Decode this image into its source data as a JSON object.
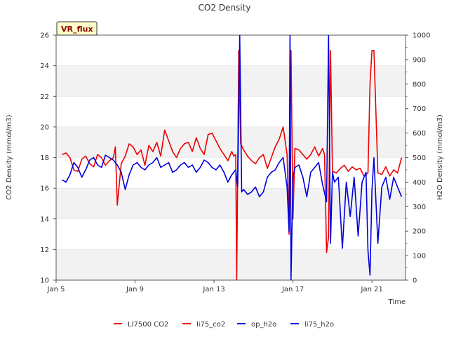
{
  "chart_data": {
    "type": "line",
    "title": "CO2 Density",
    "badge": "VR_flux",
    "xlabel": "Time",
    "ylabel_left": "CO2 Density (mmol/m3)",
    "ylabel_right": "H2O Density (mmol/m3)",
    "xlim": [
      5,
      22.7
    ],
    "ylim_left": [
      10,
      26
    ],
    "ylim_right": [
      0,
      1000
    ],
    "x_ticks": [
      {
        "value": 5,
        "label": "Jan 5"
      },
      {
        "value": 9,
        "label": "Jan 9"
      },
      {
        "value": 13,
        "label": "Jan 13"
      },
      {
        "value": 17,
        "label": "Jan 17"
      },
      {
        "value": 21,
        "label": "Jan 21"
      }
    ],
    "y_ticks_left": [
      "10",
      "12",
      "14",
      "16",
      "18",
      "20",
      "22",
      "24",
      "26"
    ],
    "y_ticks_right": [
      "0",
      "100",
      "200",
      "300",
      "400",
      "500",
      "600",
      "700",
      "800",
      "900",
      "1000"
    ],
    "grid": true,
    "legend_position": "bottom",
    "colors": {
      "red": "#ee0000",
      "blue": "#0000dd",
      "band": "#f2f2f2",
      "grid": "#dddddd"
    },
    "series": [
      {
        "name": "LI7500 CO2",
        "axis": "left",
        "color": "#ee0000",
        "x": [],
        "y": []
      },
      {
        "name": "li75_co2",
        "axis": "left",
        "color": "#ee0000",
        "x": [
          5.3,
          5.5,
          5.7,
          5.9,
          6.1,
          6.3,
          6.5,
          6.7,
          6.9,
          7.1,
          7.3,
          7.5,
          7.7,
          7.9,
          8.0,
          8.1,
          8.3,
          8.5,
          8.7,
          8.9,
          9.1,
          9.3,
          9.5,
          9.7,
          9.9,
          10.1,
          10.3,
          10.5,
          10.7,
          10.9,
          11.1,
          11.3,
          11.5,
          11.7,
          11.9,
          12.1,
          12.3,
          12.5,
          12.7,
          12.9,
          13.1,
          13.3,
          13.5,
          13.7,
          13.9,
          14.0,
          14.1,
          14.15,
          14.25,
          14.35,
          14.5,
          14.7,
          14.9,
          15.1,
          15.3,
          15.5,
          15.7,
          15.9,
          16.1,
          16.3,
          16.5,
          16.7,
          16.8,
          16.9,
          17.0,
          17.1,
          17.3,
          17.5,
          17.7,
          17.9,
          18.1,
          18.3,
          18.5,
          18.6,
          18.7,
          18.8,
          18.9,
          19.0,
          19.2,
          19.4,
          19.6,
          19.8,
          20.0,
          20.2,
          20.4,
          20.6,
          20.8,
          20.9,
          21.0,
          21.1,
          21.3,
          21.5,
          21.7,
          21.9,
          22.1,
          22.3,
          22.5
        ],
        "y": [
          18.2,
          18.3,
          18.0,
          17.2,
          17.1,
          17.9,
          18.1,
          17.6,
          17.4,
          18.2,
          18.0,
          17.5,
          17.8,
          18.0,
          18.7,
          14.9,
          17.6,
          18.1,
          18.9,
          18.7,
          18.2,
          18.5,
          17.5,
          18.8,
          18.4,
          19.0,
          18.1,
          19.8,
          19.1,
          18.4,
          18.0,
          18.6,
          18.9,
          19.0,
          18.4,
          19.3,
          18.6,
          18.2,
          19.5,
          19.6,
          19.1,
          18.6,
          18.2,
          17.8,
          18.4,
          18.1,
          18.2,
          10.0,
          25.0,
          18.9,
          18.5,
          18.1,
          17.8,
          17.6,
          18.0,
          18.2,
          17.3,
          18.0,
          18.7,
          19.2,
          20.0,
          18.2,
          13.0,
          25.0,
          14.0,
          18.6,
          18.5,
          18.2,
          17.9,
          18.2,
          18.7,
          18.1,
          18.6,
          18.2,
          11.8,
          12.8,
          25.0,
          17.1,
          17.0,
          17.3,
          17.5,
          17.1,
          17.4,
          17.2,
          17.3,
          16.8,
          17.0,
          22.8,
          25.0,
          25.0,
          17.0,
          16.9,
          17.4,
          16.8,
          17.2,
          17.0,
          18.0
        ]
      },
      {
        "name": "op_h2o",
        "axis": "right",
        "color": "#0000dd",
        "x": [],
        "y": []
      },
      {
        "name": "li75_h2o",
        "axis": "right",
        "color": "#0000dd",
        "x": [
          5.3,
          5.5,
          5.7,
          5.9,
          6.1,
          6.3,
          6.5,
          6.7,
          6.9,
          7.1,
          7.3,
          7.5,
          7.7,
          7.9,
          8.1,
          8.3,
          8.5,
          8.7,
          8.9,
          9.1,
          9.3,
          9.5,
          9.7,
          9.9,
          10.1,
          10.3,
          10.5,
          10.7,
          10.9,
          11.1,
          11.3,
          11.5,
          11.7,
          11.9,
          12.1,
          12.3,
          12.5,
          12.7,
          12.9,
          13.1,
          13.3,
          13.5,
          13.7,
          13.9,
          14.1,
          14.2,
          14.3,
          14.4,
          14.5,
          14.7,
          14.9,
          15.1,
          15.3,
          15.5,
          15.7,
          15.9,
          16.1,
          16.3,
          16.5,
          16.7,
          16.8,
          16.85,
          16.9,
          17.0,
          17.1,
          17.3,
          17.5,
          17.7,
          17.9,
          18.1,
          18.3,
          18.5,
          18.7,
          18.8,
          18.9,
          19.0,
          19.1,
          19.3,
          19.5,
          19.7,
          19.9,
          20.1,
          20.3,
          20.5,
          20.7,
          20.8,
          20.9,
          21.0,
          21.1,
          21.3,
          21.5,
          21.7,
          21.9,
          22.1,
          22.3,
          22.5
        ],
        "y": [
          410,
          400,
          430,
          480,
          460,
          420,
          450,
          490,
          500,
          470,
          460,
          510,
          500,
          490,
          470,
          440,
          370,
          430,
          470,
          480,
          460,
          450,
          470,
          480,
          500,
          460,
          470,
          480,
          440,
          450,
          470,
          480,
          460,
          470,
          440,
          460,
          490,
          480,
          460,
          450,
          470,
          440,
          400,
          430,
          450,
          380,
          1000,
          360,
          370,
          350,
          360,
          380,
          340,
          360,
          420,
          440,
          450,
          480,
          500,
          380,
          200,
          1000,
          0,
          420,
          460,
          470,
          420,
          340,
          440,
          460,
          480,
          390,
          320,
          1000,
          150,
          440,
          400,
          420,
          130,
          400,
          260,
          420,
          180,
          400,
          440,
          120,
          20,
          370,
          500,
          150,
          380,
          420,
          330,
          420,
          380,
          340
        ]
      }
    ]
  }
}
